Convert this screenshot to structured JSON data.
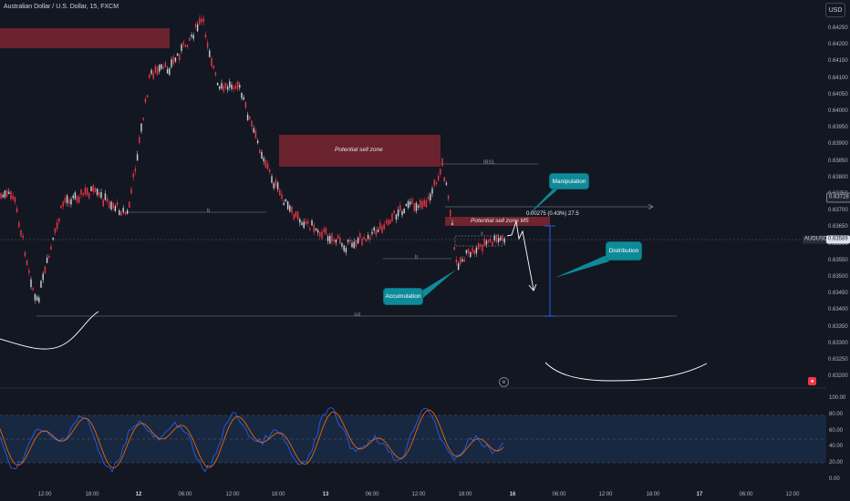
{
  "header": {
    "title": "Australian Dollar / U.S. Dollar, 15, FXCM",
    "currency_button": "USD"
  },
  "price_axis": {
    "ticks": [
      "0.64250",
      "0.64200",
      "0.64150",
      "0.64100",
      "0.64050",
      "0.64000",
      "0.63950",
      "0.63900",
      "0.63850",
      "0.63800",
      "0.63750",
      "0.63700",
      "0.63650",
      "0.63600",
      "0.63550",
      "0.63500",
      "0.63450",
      "0.63400",
      "0.63350",
      "0.63300",
      "0.63250",
      "0.63200"
    ],
    "level_flag": "0.63728",
    "symbol_flag": "AUDUSD",
    "last_price_flag": "0.63589"
  },
  "time_axis": {
    "ticks": [
      "12:00",
      "18:00",
      "12",
      "06:00",
      "12:00",
      "18:00",
      "13",
      "06:00",
      "12:00",
      "18:00",
      "16",
      "06:00",
      "12:00",
      "18:00",
      "17",
      "06:00",
      "12:00"
    ]
  },
  "annotations": {
    "zones": {
      "sell_zone": "Potential sell zone",
      "sell_zone_m5": "Potential sell zone M5"
    },
    "callouts": {
      "manipulation": "Manipulation",
      "distribution": "Distribution",
      "accumulation": "Accumulation"
    },
    "level_labels": {
      "ibsl": "IBSL",
      "b_upper": "b",
      "b_lower": "b",
      "ssl": "ssl",
      "x": "x"
    },
    "measure_label": "0.00275 (0.43%) 27.5"
  },
  "oscillator": {
    "ticks": [
      "100.00",
      "80.00",
      "60.00",
      "40.00",
      "20.00",
      "0.00"
    ],
    "overbought": 80,
    "oversold": 20
  },
  "colors": {
    "background": "#131722",
    "bull": "#d1d4dc",
    "bear": "#f23645",
    "zone_fill": "#7a2630",
    "callout": "#0e8a98",
    "measure": "#2962ff",
    "osc_k": "#2962ff",
    "osc_d": "#ff6d00"
  },
  "icons": {
    "bell": "bell-icon",
    "event": "event-flag-icon"
  }
}
